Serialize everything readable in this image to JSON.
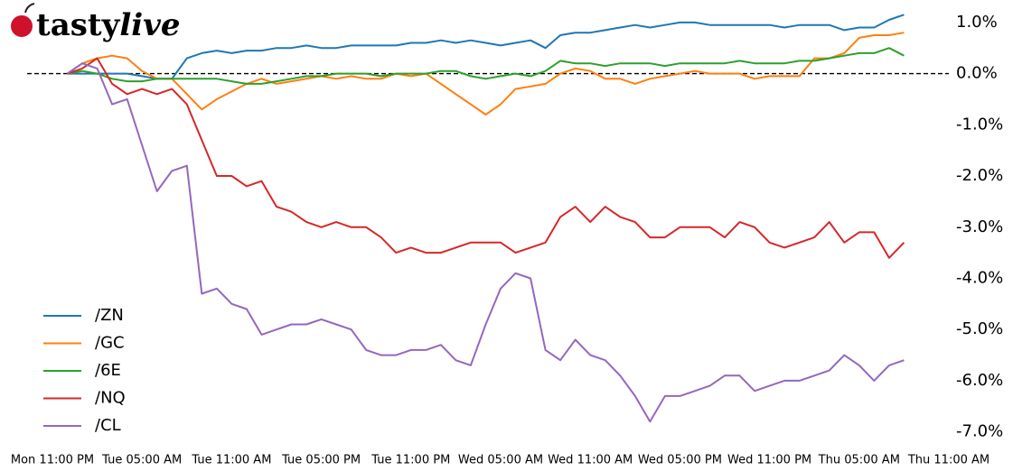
{
  "logo": {
    "bold": "tasty",
    "italic": "live"
  },
  "chart_data": {
    "type": "line",
    "categories": [
      "Mon 11:00 PM",
      null,
      null,
      null,
      null,
      null,
      "Tue 05:00 AM",
      null,
      null,
      null,
      null,
      null,
      "Tue 11:00 AM",
      null,
      null,
      null,
      null,
      null,
      "Tue 05:00 PM",
      null,
      null,
      null,
      null,
      null,
      "Tue 11:00 PM",
      null,
      null,
      null,
      null,
      null,
      "Wed 05:00 AM",
      null,
      null,
      null,
      null,
      null,
      "Wed 11:00 AM",
      null,
      null,
      null,
      null,
      null,
      "Wed 05:00 PM",
      null,
      null,
      null,
      null,
      null,
      "Wed 11:00 PM",
      null,
      null,
      null,
      null,
      null,
      "Thu 05:00 AM",
      null,
      null,
      null,
      null,
      null,
      "Thu 11:00 AM"
    ],
    "series": [
      {
        "name": "/ZN",
        "color": "#1f77b4",
        "values": [
          null,
          0,
          0,
          0,
          0,
          0,
          -0.05,
          -0.1,
          -0.1,
          0.3,
          0.4,
          0.45,
          0.4,
          0.45,
          0.45,
          0.5,
          0.5,
          0.55,
          0.5,
          0.5,
          0.55,
          0.55,
          0.55,
          0.55,
          0.6,
          0.6,
          0.65,
          0.6,
          0.65,
          0.6,
          0.55,
          0.6,
          0.65,
          0.5,
          0.75,
          0.8,
          0.8,
          0.85,
          0.9,
          0.95,
          0.9,
          0.95,
          1.0,
          1.0,
          0.95,
          0.95,
          0.95,
          0.95,
          0.95,
          0.9,
          0.95,
          0.95,
          0.95,
          0.85,
          0.9,
          0.9,
          1.05,
          1.15,
          null,
          null,
          null
        ]
      },
      {
        "name": "/GC",
        "color": "#ff7f0e",
        "values": [
          null,
          0,
          0.2,
          0.3,
          0.35,
          0.3,
          0.05,
          -0.1,
          -0.1,
          -0.4,
          -0.7,
          -0.5,
          -0.35,
          -0.2,
          -0.1,
          -0.2,
          -0.15,
          -0.1,
          -0.05,
          -0.1,
          -0.05,
          -0.1,
          -0.1,
          0,
          -0.05,
          0,
          -0.2,
          -0.4,
          -0.6,
          -0.8,
          -0.6,
          -0.3,
          -0.25,
          -0.2,
          0,
          0.1,
          0.05,
          -0.1,
          -0.1,
          -0.2,
          -0.1,
          -0.05,
          0,
          0.05,
          0,
          0,
          0,
          -0.1,
          -0.05,
          -0.05,
          -0.05,
          0.3,
          0.3,
          0.4,
          0.7,
          0.75,
          0.75,
          0.8,
          null,
          null,
          null
        ]
      },
      {
        "name": "/6E",
        "color": "#2ca02c",
        "values": [
          null,
          0,
          0.05,
          0,
          -0.1,
          -0.15,
          -0.15,
          -0.1,
          -0.1,
          -0.1,
          -0.1,
          -0.1,
          -0.15,
          -0.2,
          -0.2,
          -0.15,
          -0.1,
          -0.05,
          -0.05,
          0,
          0,
          0,
          -0.05,
          0,
          0,
          0,
          0.05,
          0.05,
          -0.05,
          -0.1,
          -0.05,
          0,
          -0.05,
          0.05,
          0.25,
          0.2,
          0.2,
          0.15,
          0.2,
          0.2,
          0.2,
          0.15,
          0.2,
          0.2,
          0.2,
          0.2,
          0.25,
          0.2,
          0.2,
          0.2,
          0.25,
          0.25,
          0.3,
          0.35,
          0.4,
          0.4,
          0.5,
          0.35,
          null,
          null,
          null
        ]
      },
      {
        "name": "/NQ",
        "color": "#d62728",
        "values": [
          null,
          0,
          0.1,
          0.3,
          -0.2,
          -0.4,
          -0.3,
          -0.4,
          -0.3,
          -0.6,
          -1.3,
          -2.0,
          -2.0,
          -2.2,
          -2.1,
          -2.6,
          -2.7,
          -2.9,
          -3.0,
          -2.9,
          -3.0,
          -3.0,
          -3.2,
          -3.5,
          -3.4,
          -3.5,
          -3.5,
          -3.4,
          -3.3,
          -3.3,
          -3.3,
          -3.5,
          -3.4,
          -3.3,
          -2.8,
          -2.6,
          -2.9,
          -2.6,
          -2.8,
          -2.9,
          -3.2,
          -3.2,
          -3.0,
          -3.0,
          -3.0,
          -3.2,
          -2.9,
          -3.0,
          -3.3,
          -3.4,
          -3.3,
          -3.2,
          -2.9,
          -3.3,
          -3.1,
          -3.1,
          -3.6,
          -3.3,
          null,
          null,
          null
        ]
      },
      {
        "name": "/CL",
        "color": "#9467bd",
        "values": [
          null,
          0,
          0.2,
          0.1,
          -0.6,
          -0.5,
          -1.4,
          -2.3,
          -1.9,
          -1.8,
          -4.3,
          -4.2,
          -4.5,
          -4.6,
          -5.1,
          -5.0,
          -4.9,
          -4.9,
          -4.8,
          -4.9,
          -5.0,
          -5.4,
          -5.5,
          -5.5,
          -5.4,
          -5.4,
          -5.3,
          -5.6,
          -5.7,
          -4.9,
          -4.2,
          -3.9,
          -4.0,
          -5.4,
          -5.6,
          -5.2,
          -5.5,
          -5.6,
          -5.9,
          -6.3,
          -6.8,
          -6.3,
          -6.3,
          -6.2,
          -6.1,
          -5.9,
          -5.9,
          -6.2,
          -6.1,
          -6.0,
          -6.0,
          -5.9,
          -5.8,
          -5.5,
          -5.7,
          -6.0,
          -5.7,
          -5.6,
          null,
          null,
          null
        ]
      }
    ],
    "ylim": [
      -7.2,
      1.35
    ],
    "yticks": [
      {
        "value": 1,
        "label": "1.0%"
      },
      {
        "value": 0,
        "label": "0.0%"
      },
      {
        "value": -1,
        "label": "-1.0%"
      },
      {
        "value": -2,
        "label": "-2.0%"
      },
      {
        "value": -3,
        "label": "-3.0%"
      },
      {
        "value": -4,
        "label": "-4.0%"
      },
      {
        "value": -5,
        "label": "-5.0%"
      },
      {
        "value": -6,
        "label": "-6.0%"
      },
      {
        "value": -7,
        "label": "-7.0%"
      }
    ],
    "y_axis_side": "right",
    "hline": 0,
    "legend": "lower left"
  }
}
